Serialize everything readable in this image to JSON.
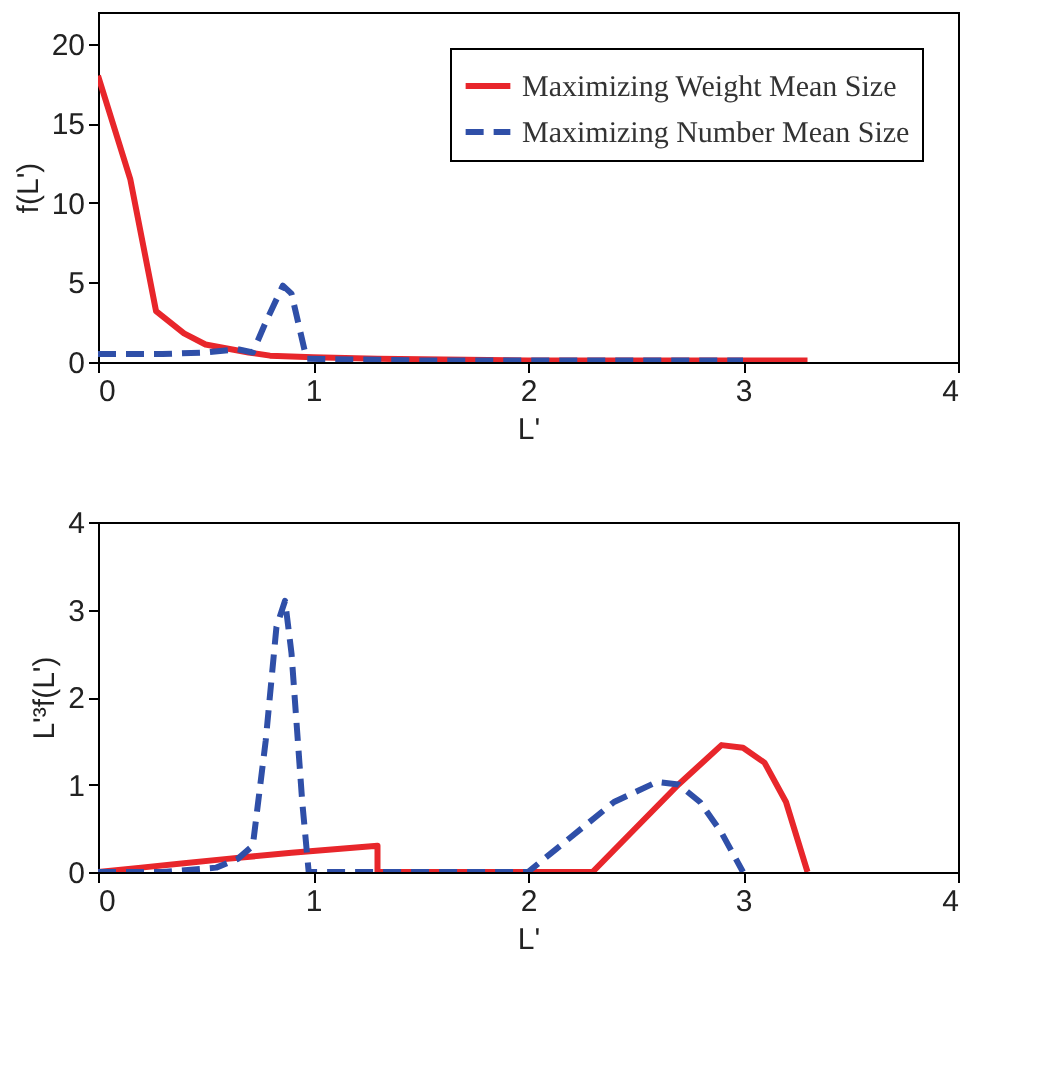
{
  "chart_data": [
    {
      "type": "line",
      "xlabel": "L'",
      "ylabel": "f(L')",
      "xlim": [
        0,
        4
      ],
      "ylim": [
        0,
        22
      ],
      "xticks": [
        0,
        1,
        2,
        3,
        4
      ],
      "yticks": [
        0,
        5,
        10,
        15,
        20
      ],
      "legend": "top right",
      "grid": false,
      "series": [
        {
          "name": "Maximizing Weight Mean Size",
          "color": "#e8262b",
          "line_style": "solid",
          "x": [
            0,
            0.15,
            0.27,
            0.4,
            0.5,
            0.7,
            0.8,
            1.0,
            1.3,
            2,
            3.3
          ],
          "values": [
            18,
            11.5,
            3.2,
            1.8,
            1.1,
            0.6,
            0.4,
            0.3,
            0.2,
            0.1,
            0.1
          ]
        },
        {
          "name": "Maximizing Number Mean Size",
          "color": "#2f4fa8",
          "line_style": "dashed",
          "x": [
            0,
            0.3,
            0.5,
            0.65,
            0.72,
            0.78,
            0.86,
            0.9,
            0.97,
            1.5,
            3
          ],
          "values": [
            0.5,
            0.5,
            0.6,
            0.8,
            0.6,
            2.5,
            4.8,
            4.3,
            0.2,
            0.1,
            0.1
          ]
        }
      ]
    },
    {
      "type": "line",
      "xlabel": "L'",
      "ylabel": "L'³f(L')",
      "xlim": [
        0,
        4
      ],
      "ylim": [
        0,
        4
      ],
      "xticks": [
        0,
        1,
        2,
        3,
        4
      ],
      "yticks": [
        0,
        1,
        2,
        3,
        4
      ],
      "grid": false,
      "series": [
        {
          "color": "#e8262b",
          "line_style": "solid",
          "x": [
            0,
            0.2,
            0.4,
            0.6,
            0.9,
            1.3,
            1.3,
            2.3,
            2.5,
            2.7,
            2.9,
            3.0,
            3.1,
            3.2,
            3.3
          ],
          "values": [
            0,
            0.05,
            0.1,
            0.15,
            0.22,
            0.3,
            0,
            0,
            0.5,
            1.0,
            1.45,
            1.42,
            1.25,
            0.8,
            0
          ]
        },
        {
          "color": "#2f4fa8",
          "line_style": "dashed",
          "x": [
            0,
            0.3,
            0.55,
            0.65,
            0.72,
            0.78,
            0.83,
            0.87,
            0.9,
            0.95,
            0.98,
            2,
            2.2,
            2.4,
            2.6,
            2.7,
            2.8,
            2.9,
            3.0
          ],
          "values": [
            0,
            0,
            0.05,
            0.15,
            0.3,
            1.5,
            2.8,
            3.1,
            2.5,
            0.8,
            0,
            0,
            0.4,
            0.8,
            1.03,
            1.0,
            0.8,
            0.45,
            0
          ]
        }
      ]
    }
  ]
}
